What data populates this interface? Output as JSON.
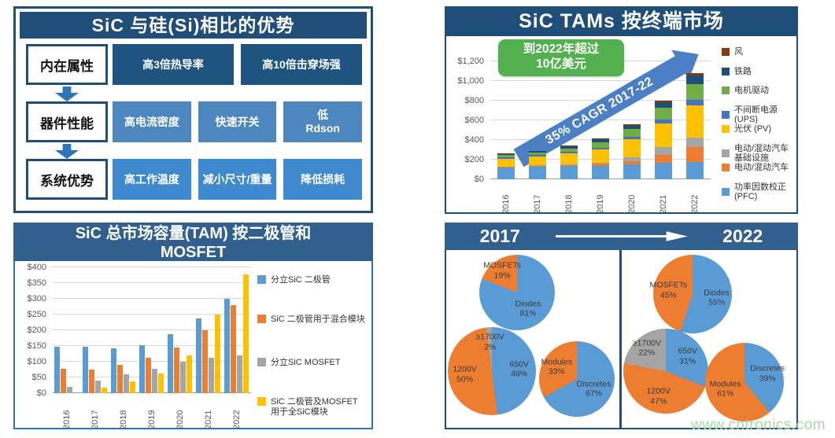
{
  "watermark": "www.cntronics.com",
  "panels": {
    "advantages": {
      "title": "SiC 与硅(Si)相比的优势",
      "rows": [
        {
          "category": "内在属性",
          "tone": "dark",
          "items": [
            "高3倍热导率",
            "高10倍击穿场强"
          ]
        },
        {
          "category": "器件性能",
          "tone": "medium",
          "items": [
            "高电流密度",
            "快速开关",
            "低\nRdson"
          ]
        },
        {
          "category": "系统优势",
          "tone": "light",
          "items": [
            "高工作温度",
            "减小尺寸/重量",
            "降低损耗"
          ]
        }
      ]
    },
    "tam_by_market": {
      "title": "SiC TAMs 按终端市场",
      "callout_line1": "到2022年超过",
      "callout_line2": "10亿美元",
      "arrow_label": "35% CAGR 2017-22"
    },
    "tam_by_device": {
      "title_line1": "SiC 总市场容量(TAM) 按二极管和",
      "title_line2": "MOSFET"
    },
    "split": {
      "year_left": "2017",
      "year_right": "2022"
    }
  },
  "colors": {
    "navy_header": "#1F4E79",
    "steel_header": "#31608E",
    "blue": "#5B9BD5",
    "orange": "#ED7D31",
    "gray": "#A5A5A5",
    "yellow": "#FFC000",
    "green": "#70AD47",
    "ups_blue": "#4472C4",
    "rail_navy": "#1F4E79",
    "wind_brown": "#843C0C",
    "callout_green": "#52B14E",
    "arrow_blue": "#4B80C4",
    "watermark_green": "#A6D99F"
  },
  "chart_data": [
    {
      "id": "tam_by_end_market",
      "type": "bar",
      "stacked": true,
      "title": "SiC TAMs 按终端市场",
      "unit": "$M",
      "categories": [
        "2016",
        "2017",
        "2018",
        "2019",
        "2020",
        "2021",
        "2022"
      ],
      "ylim": [
        0,
        1200
      ],
      "ytick_step": 200,
      "ytick_labels": [
        "$0",
        "$200",
        "$400",
        "$600",
        "$800",
        "$1,000",
        "$1,200"
      ],
      "grid": true,
      "legend_position": "right",
      "annotations": [
        "到2022年超过 10亿美元",
        "35% CAGR 2017-22"
      ],
      "series": [
        {
          "name": "功率因数校正 (PFC)",
          "color": "#5B9BD5",
          "values": [
            120,
            128,
            134,
            140,
            150,
            165,
            180
          ]
        },
        {
          "name": "电动/混动汽车",
          "color": "#ED7D31",
          "values": [
            8,
            9,
            12,
            18,
            35,
            80,
            150
          ]
        },
        {
          "name": "电动/混动汽车基础设施",
          "color": "#A5A5A5",
          "values": [
            4,
            4,
            6,
            9,
            42,
            80,
            95
          ]
        },
        {
          "name": "光伏 (PV)",
          "color": "#FFC000",
          "values": [
            80,
            90,
            110,
            135,
            180,
            245,
            330
          ]
        },
        {
          "name": "不间断电源 (UPS)",
          "color": "#4472C4",
          "values": [
            13,
            14,
            17,
            22,
            28,
            40,
            52
          ]
        },
        {
          "name": "电机驱动",
          "color": "#70AD47",
          "values": [
            20,
            25,
            35,
            50,
            75,
            115,
            160
          ]
        },
        {
          "name": "铁路",
          "color": "#1F4E79",
          "values": [
            12,
            15,
            23,
            34,
            38,
            62,
            90
          ]
        },
        {
          "name": "风",
          "color": "#843C0C",
          "values": [
            4,
            5,
            7,
            11,
            12,
            16,
            22
          ]
        }
      ]
    },
    {
      "id": "tam_by_device",
      "type": "bar",
      "grouped": true,
      "title": "SiC 总市场容量(TAM) 按二极管和 MOSFET",
      "unit": "$M",
      "categories": [
        "2016",
        "2017",
        "2018",
        "2019",
        "2020",
        "2021",
        "2022"
      ],
      "ylim": [
        0,
        400
      ],
      "ytick_step": 50,
      "ytick_labels": [
        "$0",
        "$50",
        "$100",
        "$150",
        "$200",
        "$250",
        "$300",
        "$350",
        "$400"
      ],
      "grid": true,
      "legend_position": "right",
      "series": [
        {
          "name": "分立SiC 二极管",
          "color": "#5B9BD5",
          "values": [
            148,
            148,
            143,
            153,
            187,
            238,
            301
          ]
        },
        {
          "name": "SiC 二极管用于混合模块",
          "color": "#ED7D31",
          "values": [
            78,
            75,
            90,
            112,
            146,
            200,
            280
          ]
        },
        {
          "name": "分立SiC MOSFET",
          "color": "#A5A5A5",
          "values": [
            20,
            40,
            60,
            78,
            101,
            112,
            119
          ]
        },
        {
          "name": "SiC 二极管及MOSFET\n用于全SiC模块",
          "color": "#FFC000",
          "values": [
            0,
            17,
            38,
            62,
            119,
            251,
            378
          ]
        }
      ]
    },
    {
      "id": "pies_2017",
      "type": "pie",
      "year": "2017",
      "pies": [
        {
          "id": "device",
          "slices": [
            {
              "label": "Diodes",
              "pct": 81,
              "color": "#5B9BD5"
            },
            {
              "label": "MOSFETs",
              "pct": 19,
              "color": "#ED7D31"
            }
          ]
        },
        {
          "id": "voltage",
          "slices": [
            {
              "label": "650V",
              "pct": 48,
              "color": "#5B9BD5"
            },
            {
              "label": "1200V",
              "pct": 50,
              "color": "#ED7D31"
            },
            {
              "label": "≥1700V",
              "pct": 2,
              "color": "#A5A5A5"
            }
          ]
        },
        {
          "id": "package",
          "slices": [
            {
              "label": "Discretes",
              "pct": 67,
              "color": "#5B9BD5"
            },
            {
              "label": "Modules",
              "pct": 33,
              "color": "#ED7D31"
            }
          ]
        }
      ]
    },
    {
      "id": "pies_2022",
      "type": "pie",
      "year": "2022",
      "pies": [
        {
          "id": "device",
          "slices": [
            {
              "label": "Diodes",
              "pct": 55,
              "color": "#5B9BD5"
            },
            {
              "label": "MOSFETs",
              "pct": 45,
              "color": "#ED7D31"
            }
          ]
        },
        {
          "id": "voltage",
          "slices": [
            {
              "label": "650V",
              "pct": 31,
              "color": "#5B9BD5"
            },
            {
              "label": "1200V",
              "pct": 47,
              "color": "#ED7D31"
            },
            {
              "label": "≥1700V",
              "pct": 22,
              "color": "#A5A5A5"
            }
          ]
        },
        {
          "id": "package",
          "slices": [
            {
              "label": "Discretes",
              "pct": 39,
              "color": "#5B9BD5"
            },
            {
              "label": "Modules",
              "pct": 61,
              "color": "#ED7D31"
            }
          ]
        }
      ]
    }
  ]
}
